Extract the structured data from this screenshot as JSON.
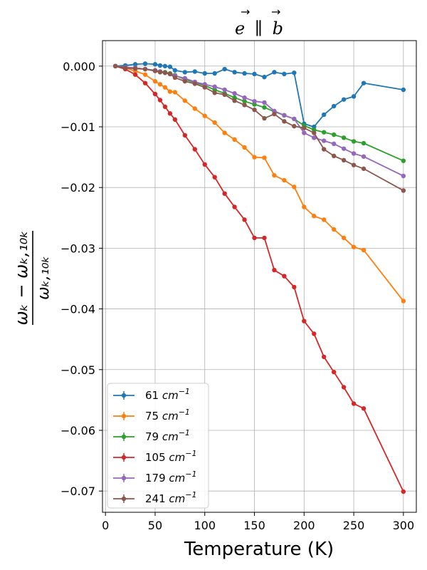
{
  "chart_data": {
    "type": "line",
    "title": "e⃗ ∥ b⃗",
    "title_parts": {
      "left": "e",
      "sep": "∥",
      "right": "b"
    },
    "xlabel": "Temperature (K)",
    "ylabel": {
      "num": "ωₖ − ωₖ,₁₀ₖ",
      "den": "ωₖ,₁₀ₖ"
    },
    "xlim": [
      -3,
      313
    ],
    "ylim": [
      -0.0735,
      0.0042
    ],
    "xticks": [
      0,
      50,
      100,
      150,
      200,
      250,
      300
    ],
    "yticks": [
      0.0,
      -0.01,
      -0.02,
      -0.03,
      -0.04,
      -0.05,
      -0.06,
      -0.07
    ],
    "ytick_labels": [
      "0.000",
      "−0.01",
      "−0.02",
      "−0.03",
      "−0.04",
      "−0.05",
      "−0.06",
      "−0.07"
    ],
    "grid": true,
    "legend_position": "lower-left",
    "x": [
      10,
      20,
      30,
      40,
      50,
      55,
      60,
      65,
      70,
      80,
      90,
      100,
      110,
      120,
      130,
      140,
      150,
      160,
      170,
      180,
      190,
      200,
      210,
      220,
      230,
      240,
      250,
      260,
      300
    ],
    "series": [
      {
        "name": "61",
        "unit": "cm",
        "exp": "−1",
        "color": "#1f77b4",
        "values": [
          0.0,
          0.0001,
          0.0003,
          0.0004,
          0.0003,
          0.0001,
          0.0,
          -0.0001,
          -0.0007,
          -0.001,
          -0.0009,
          -0.0012,
          -0.0012,
          -0.0005,
          -0.001,
          -0.0012,
          -0.0013,
          -0.0018,
          -0.001,
          -0.0013,
          -0.0011,
          -0.0095,
          -0.01,
          -0.008,
          -0.0066,
          -0.0055,
          -0.005,
          -0.0028,
          -0.0039
        ]
      },
      {
        "name": "75",
        "unit": "cm",
        "exp": "−1",
        "color": "#ff7f0e",
        "values": [
          0.0,
          -0.0003,
          -0.0008,
          -0.0014,
          -0.0025,
          -0.003,
          -0.0035,
          -0.0042,
          -0.0043,
          -0.0057,
          -0.007,
          -0.0082,
          -0.0093,
          -0.011,
          -0.0121,
          -0.0134,
          -0.015,
          -0.0151,
          -0.018,
          -0.0188,
          -0.0199,
          -0.0232,
          -0.0247,
          -0.0253,
          -0.0269,
          -0.0283,
          -0.0298,
          -0.0303,
          -0.0387
        ]
      },
      {
        "name": "79",
        "unit": "cm",
        "exp": "−1",
        "color": "#2ca02c",
        "values": [
          0.0,
          -0.0002,
          -0.0003,
          -0.0005,
          -0.0007,
          -0.0009,
          -0.001,
          -0.0012,
          -0.0015,
          -0.0022,
          -0.0027,
          -0.0032,
          -0.0039,
          -0.0045,
          -0.0052,
          -0.0058,
          -0.0063,
          -0.0068,
          -0.0075,
          -0.0081,
          -0.0087,
          -0.0098,
          -0.0105,
          -0.0109,
          -0.0113,
          -0.0118,
          -0.0124,
          -0.0127,
          -0.0156
        ]
      },
      {
        "name": "105",
        "unit": "cm",
        "exp": "−1",
        "color": "#d62728",
        "values": [
          0.0,
          -0.0005,
          -0.0014,
          -0.0028,
          -0.0046,
          -0.0056,
          -0.0067,
          -0.0078,
          -0.0088,
          -0.0114,
          -0.0137,
          -0.0162,
          -0.0183,
          -0.021,
          -0.0232,
          -0.0253,
          -0.0283,
          -0.0283,
          -0.0336,
          -0.0346,
          -0.0364,
          -0.042,
          -0.0441,
          -0.0479,
          -0.0504,
          -0.0529,
          -0.0556,
          -0.0564,
          -0.0701
        ]
      },
      {
        "name": "179",
        "unit": "cm",
        "exp": "−1",
        "color": "#9467bd",
        "values": [
          0.0,
          -0.0002,
          -0.0003,
          -0.0005,
          -0.0007,
          -0.0009,
          -0.0011,
          -0.0013,
          -0.0016,
          -0.002,
          -0.0026,
          -0.003,
          -0.0034,
          -0.0039,
          -0.0045,
          -0.0052,
          -0.0058,
          -0.006,
          -0.0074,
          -0.0081,
          -0.0087,
          -0.011,
          -0.0118,
          -0.0123,
          -0.0128,
          -0.0136,
          -0.0144,
          -0.0149,
          -0.0181
        ]
      },
      {
        "name": "241",
        "unit": "cm",
        "exp": "−1",
        "color": "#8c564b",
        "values": [
          0.0,
          -0.0003,
          -0.0004,
          -0.0005,
          -0.0008,
          -0.001,
          -0.0011,
          -0.0013,
          -0.0019,
          -0.0025,
          -0.0029,
          -0.0035,
          -0.0044,
          -0.0047,
          -0.0057,
          -0.0064,
          -0.0072,
          -0.0086,
          -0.0079,
          -0.0091,
          -0.0099,
          -0.0102,
          -0.011,
          -0.0137,
          -0.0148,
          -0.0155,
          -0.0163,
          -0.0169,
          -0.0205
        ]
      }
    ]
  }
}
